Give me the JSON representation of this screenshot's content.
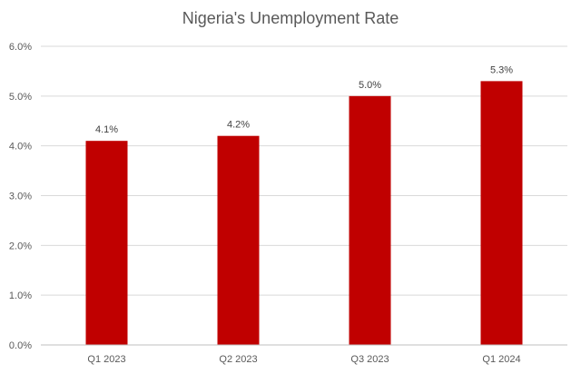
{
  "chart_data": {
    "type": "bar",
    "title": "Nigeria's Unemployment Rate",
    "xlabel": "",
    "ylabel": "",
    "categories": [
      "Q1 2023",
      "Q2 2023",
      "Q3 2023",
      "Q1 2024"
    ],
    "values": [
      4.1,
      4.2,
      5.0,
      5.3
    ],
    "data_labels": [
      "4.1%",
      "4.2%",
      "5.0%",
      "5.3%"
    ],
    "ylim": [
      0,
      6
    ],
    "yticks": [
      "0.0%",
      "1.0%",
      "2.0%",
      "3.0%",
      "4.0%",
      "5.0%",
      "6.0%"
    ],
    "grid": true,
    "legend": "none",
    "colors": {
      "bar": "#c00000",
      "grid": "#d9d9d9",
      "text": "#595959"
    }
  }
}
